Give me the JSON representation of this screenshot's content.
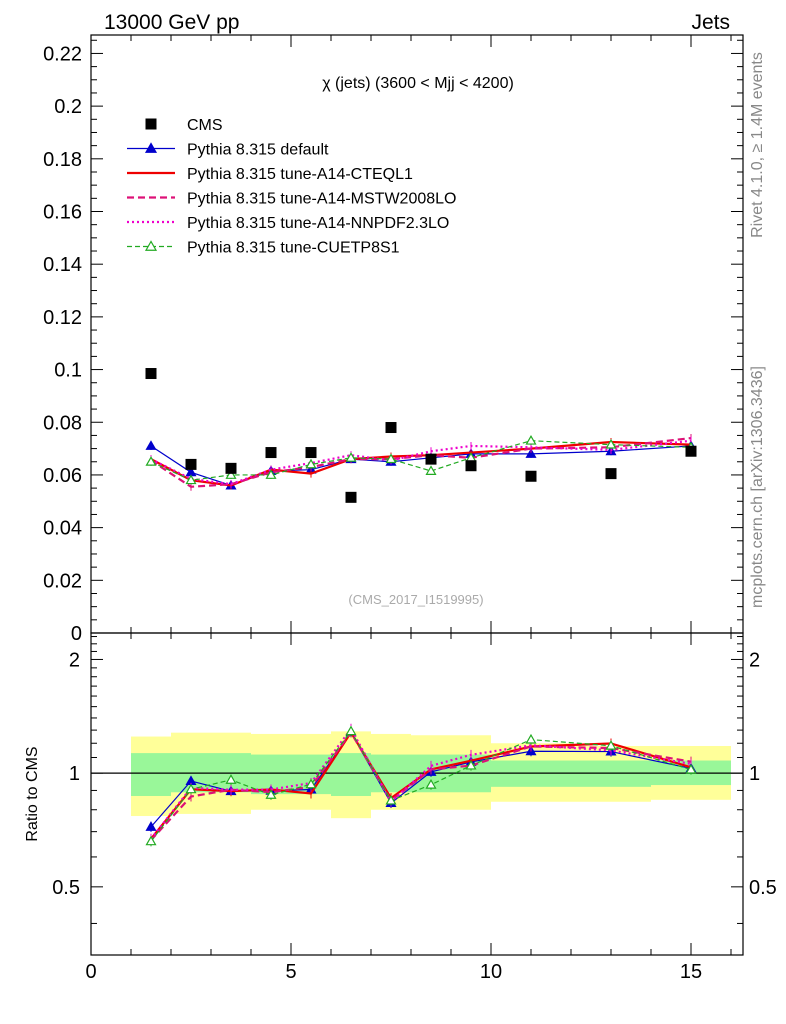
{
  "header": {
    "left": "13000 GeV pp",
    "right": "Jets"
  },
  "side_labels": {
    "top": "Rivet 4.1.0, ≥ 1.4M events",
    "bottom": "mcplots.cern.ch [arXiv:1306.3436]"
  },
  "chart_data": {
    "type": "line",
    "title": "χ (jets) (3600 < Mjj < 4200)",
    "watermark": "(CMS_2017_I1519995)",
    "xlim": [
      0,
      16.3
    ],
    "ylim": [
      0,
      0.227
    ],
    "ratio_ylim": [
      0.33,
      2.35
    ],
    "ratio_ylabel": "Ratio to CMS",
    "x_ticks": [
      0,
      5,
      10,
      15
    ],
    "x_tick_labels": [
      "0",
      "5",
      "10",
      "15"
    ],
    "y_ticks": [
      0,
      0.02,
      0.04,
      0.06,
      0.08,
      0.1,
      0.12,
      0.14,
      0.16,
      0.18,
      0.2,
      0.22
    ],
    "y_tick_labels": [
      "0",
      "0.02",
      "0.04",
      "0.06",
      "0.08",
      "0.1",
      "0.12",
      "0.14",
      "0.16",
      "0.18",
      "0.2",
      "0.22"
    ],
    "ratio_ticks": [
      0.5,
      1,
      2
    ],
    "ratio_tick_labels": [
      "0.5",
      "1",
      "2"
    ],
    "x": [
      1.5,
      2.5,
      3.5,
      4.5,
      5.5,
      6.5,
      7.5,
      8.5,
      9.5,
      11,
      13,
      15
    ],
    "bin_edges": [
      1,
      2,
      3,
      4,
      5,
      6,
      7,
      8,
      9,
      10,
      12,
      14,
      16
    ],
    "data": {
      "name": "CMS",
      "values": [
        0.0985,
        0.064,
        0.0625,
        0.0685,
        0.0685,
        0.0515,
        0.078,
        0.066,
        0.0635,
        0.0595,
        0.0605,
        0.069
      ]
    },
    "band_inner": [
      [
        0.87,
        1.13
      ],
      [
        0.89,
        1.13
      ],
      [
        0.89,
        1.13
      ],
      [
        0.88,
        1.12
      ],
      [
        0.88,
        1.12
      ],
      [
        0.87,
        1.13
      ],
      [
        0.89,
        1.12
      ],
      [
        0.89,
        1.12
      ],
      [
        0.89,
        1.12
      ],
      [
        0.92,
        1.08
      ],
      [
        0.92,
        1.08
      ],
      [
        0.93,
        1.08
      ]
    ],
    "band_outer": [
      [
        0.77,
        1.25
      ],
      [
        0.78,
        1.28
      ],
      [
        0.78,
        1.28
      ],
      [
        0.8,
        1.27
      ],
      [
        0.8,
        1.27
      ],
      [
        0.76,
        1.29
      ],
      [
        0.8,
        1.27
      ],
      [
        0.8,
        1.26
      ],
      [
        0.8,
        1.26
      ],
      [
        0.84,
        1.2
      ],
      [
        0.84,
        1.18
      ],
      [
        0.85,
        1.18
      ]
    ],
    "series": [
      {
        "name": "Pythia 8.315 default",
        "color": "#0000cc",
        "dash": "",
        "width": 1.2,
        "marker": "tri-fill",
        "values": [
          0.071,
          0.061,
          0.056,
          0.0615,
          0.062,
          0.066,
          0.065,
          0.0665,
          0.068,
          0.068,
          0.069,
          0.071
        ]
      },
      {
        "name": "Pythia 8.315 tune-A14-CTEQL1",
        "color": "#ee0000",
        "dash": "",
        "width": 2.2,
        "marker": "",
        "values": [
          0.066,
          0.058,
          0.056,
          0.062,
          0.0605,
          0.066,
          0.067,
          0.0675,
          0.0685,
          0.07,
          0.0725,
          0.0715
        ]
      },
      {
        "name": "Pythia 8.315 tune-A14-MSTW2008LO",
        "color": "#dd1177",
        "dash": "7,4",
        "width": 2.2,
        "marker": "",
        "values": [
          0.0655,
          0.0555,
          0.0565,
          0.061,
          0.063,
          0.066,
          0.066,
          0.0675,
          0.0665,
          0.07,
          0.0705,
          0.074
        ]
      },
      {
        "name": "Pythia 8.315 tune-A14-NNPDF2.3LO",
        "color": "#ee00cc",
        "dash": "2,3",
        "width": 2.2,
        "marker": "",
        "values": [
          0.066,
          0.0585,
          0.0565,
          0.062,
          0.0645,
          0.0675,
          0.0655,
          0.069,
          0.071,
          0.0705,
          0.0695,
          0.073
        ]
      },
      {
        "name": "Pythia 8.315 tune-CUETP8S1",
        "color": "#22aa22",
        "dash": "5,3",
        "width": 1.2,
        "marker": "tri-open",
        "values": [
          0.065,
          0.058,
          0.06,
          0.06,
          0.064,
          0.0665,
          0.066,
          0.0615,
          0.0665,
          0.073,
          0.0715,
          0.0705
        ]
      }
    ]
  }
}
